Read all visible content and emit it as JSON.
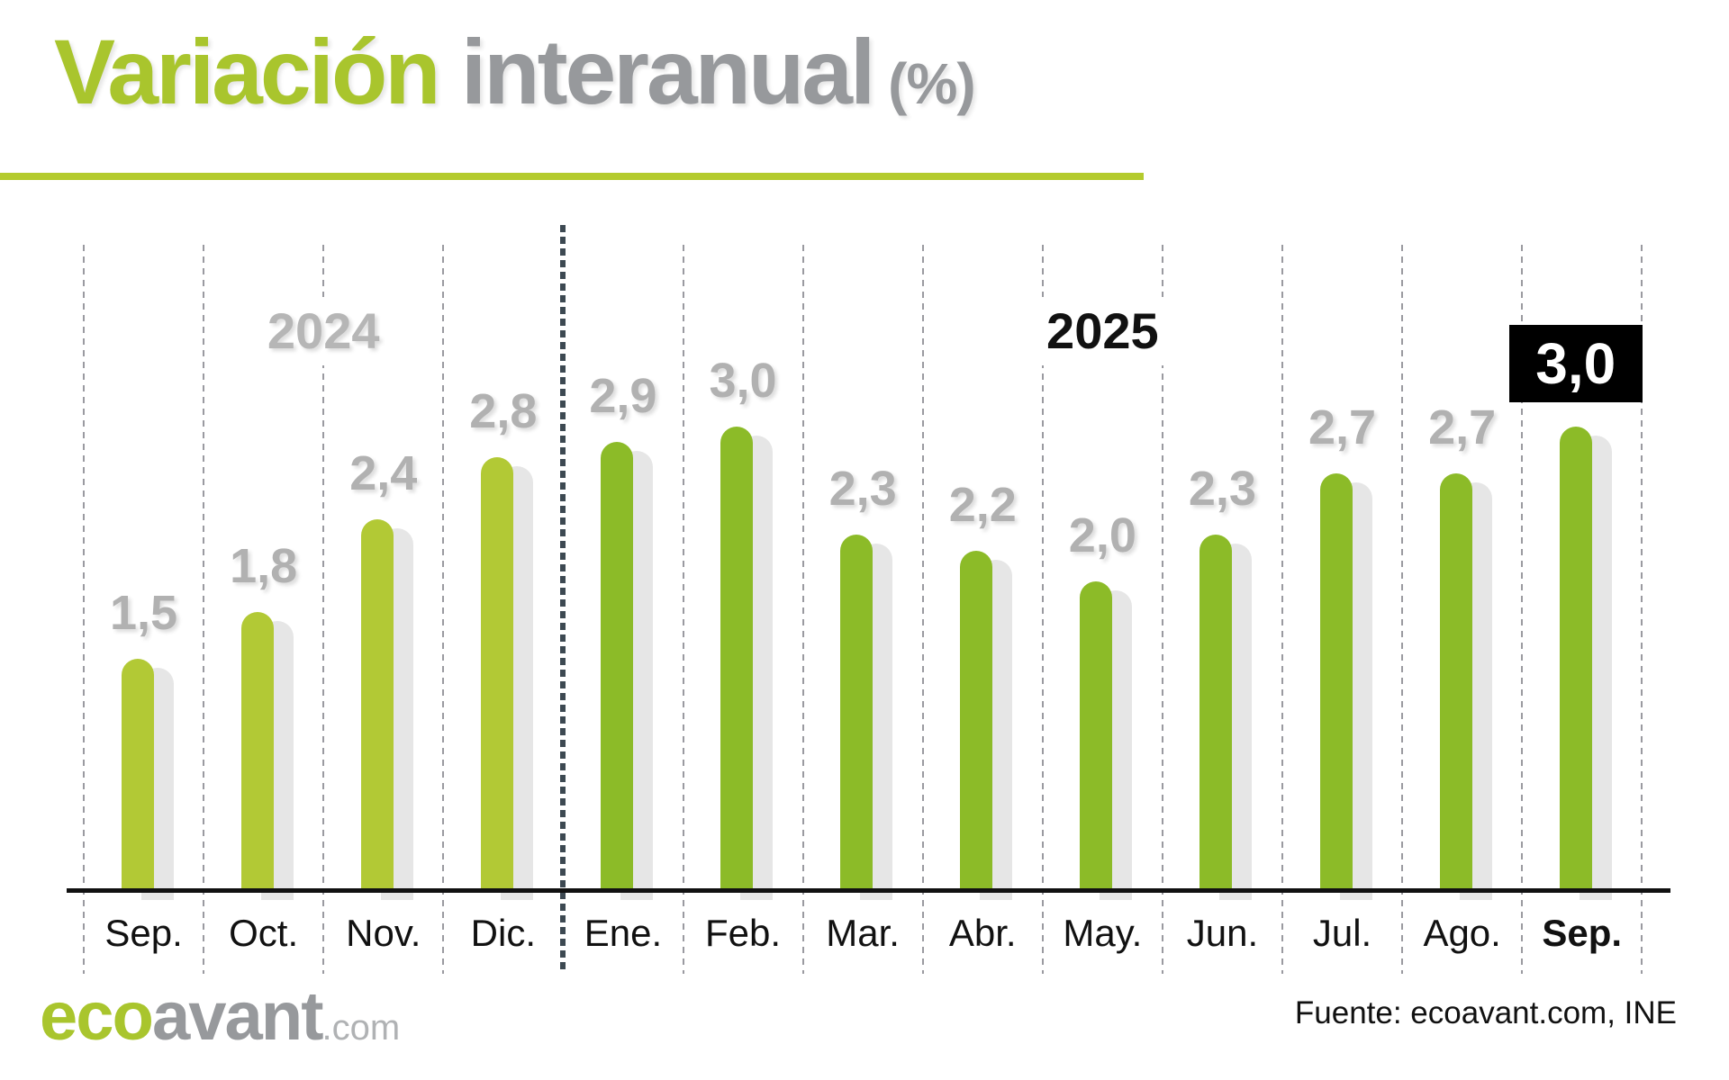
{
  "title": {
    "highlight": "Variación",
    "rest": "interanual",
    "unit": "(%)"
  },
  "chart_data": {
    "type": "bar",
    "title": "Variación interanual (%)",
    "categories": [
      "Sep.",
      "Oct.",
      "Nov.",
      "Dic.",
      "Ene.",
      "Feb.",
      "Mar.",
      "Abr.",
      "May.",
      "Jun.",
      "Jul.",
      "Ago.",
      "Sep."
    ],
    "values": [
      1.5,
      1.8,
      2.4,
      2.8,
      2.9,
      3.0,
      2.3,
      2.2,
      2.0,
      2.3,
      2.7,
      2.7,
      3.0
    ],
    "value_labels": [
      "1,5",
      "1,8",
      "2,4",
      "2,8",
      "2,9",
      "3,0",
      "2,3",
      "2,2",
      "2,0",
      "2,3",
      "2,7",
      "2,7",
      "3,0"
    ],
    "year_groups": [
      {
        "label": "2024",
        "start_index": 0,
        "end_index": 3
      },
      {
        "label": "2025",
        "start_index": 4,
        "end_index": 12
      }
    ],
    "highlight_index": 12,
    "bold_category_index": 12,
    "ylim": [
      0,
      3.5
    ],
    "xlabel": "",
    "ylabel": "",
    "grid": "vertical-dashed-month-separators",
    "legend": "none"
  },
  "footer": {
    "logo": {
      "eco": "eco",
      "avant": "avant",
      "tld": ".com"
    },
    "source": "Fuente: ecoavant.com, INE"
  },
  "colors": {
    "bar_2024": "#b2c935",
    "bar_2025": "#8cbb28",
    "bar_shadow": "#e6e6e6",
    "separator": "#9a9aa0",
    "divider": "#3d4952",
    "axis": "#111111",
    "value_label": "#b1b1b1",
    "year_2024": "#b6b6b6",
    "year_2025": "#111111",
    "highlight_bg": "#000000",
    "highlight_text": "#ffffff",
    "title_green": "#a9c52d",
    "title_gray": "#97999c",
    "underline": "#b4cb2e",
    "month_label": "#111111",
    "logo_eco": "#a9c52d",
    "logo_avant": "#97999c",
    "logo_tld": "#b0b2b4",
    "source_text": "#111111"
  }
}
